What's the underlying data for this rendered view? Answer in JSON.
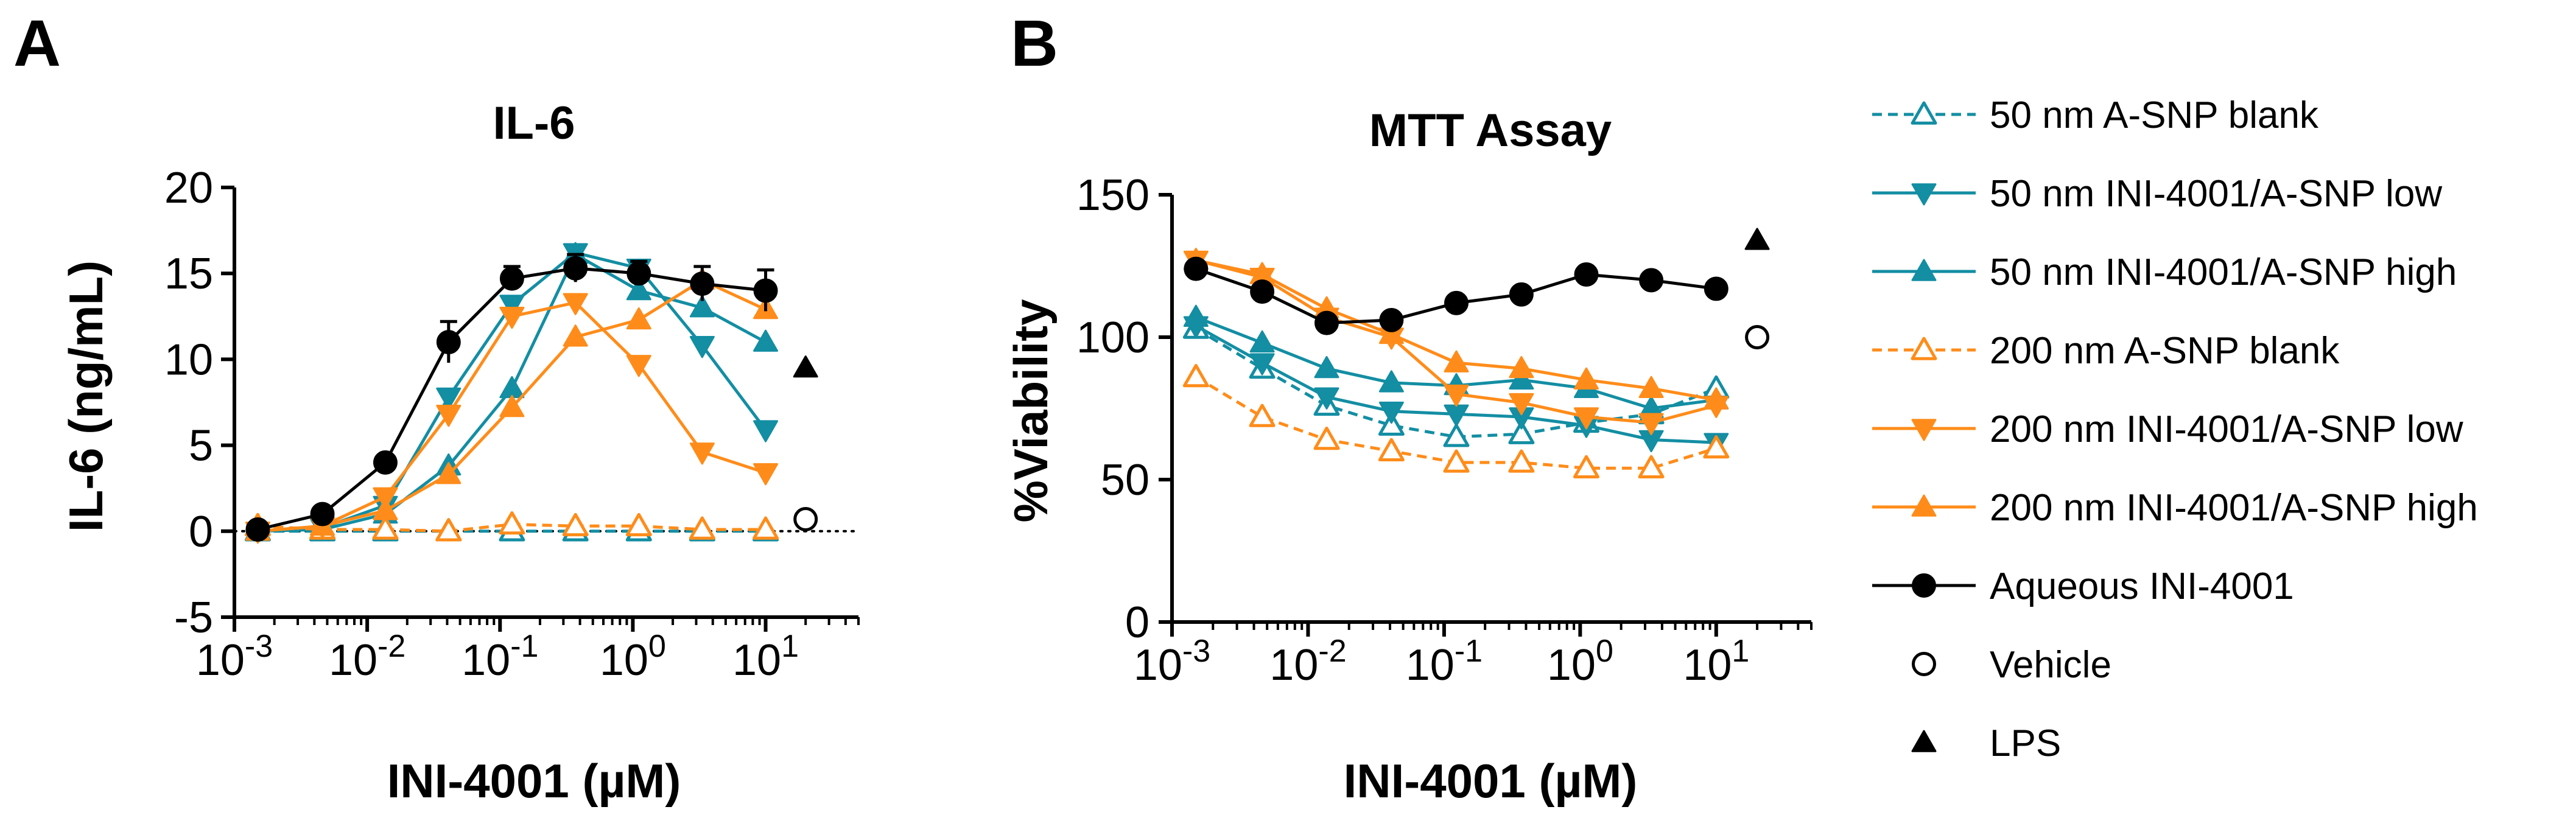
{
  "panels": {
    "a": {
      "letter": "A"
    },
    "b": {
      "letter": "B"
    }
  },
  "colors": {
    "teal": "#138ea3",
    "orange": "#ff8c1a",
    "black": "#000000"
  },
  "legend": [
    {
      "name": "50 nm A-SNP blank",
      "color": "#138ea3",
      "marker": "triangle-up-open",
      "dash": true
    },
    {
      "name": "50 nm INI-4001/A-SNP low",
      "color": "#138ea3",
      "marker": "triangle-down",
      "dash": false
    },
    {
      "name": "50 nm INI-4001/A-SNP high",
      "color": "#138ea3",
      "marker": "triangle-up",
      "dash": false
    },
    {
      "name": "200 nm A-SNP blank",
      "color": "#ff8c1a",
      "marker": "triangle-up-open",
      "dash": true
    },
    {
      "name": "200 nm INI-4001/A-SNP low",
      "color": "#ff8c1a",
      "marker": "triangle-down",
      "dash": false
    },
    {
      "name": "200 nm INI-4001/A-SNP high",
      "color": "#ff8c1a",
      "marker": "triangle-up",
      "dash": false
    },
    {
      "name": "Aqueous INI-4001",
      "color": "#000000",
      "marker": "circle",
      "dash": false
    },
    {
      "name": "Vehicle",
      "color": "#000000",
      "marker": "circle-open",
      "line": false
    },
    {
      "name": "LPS",
      "color": "#000000",
      "marker": "triangle-up",
      "line": false
    }
  ],
  "chart_data": [
    {
      "panel": "A",
      "type": "line",
      "title": "IL-6",
      "xlabel": "INI-4001 (µM)",
      "ylabel": "IL-6 (ng/mL)",
      "xscale": "log",
      "xlim": [
        0.001,
        50
      ],
      "ylim": [
        -5,
        20
      ],
      "xticks": [
        "10-3",
        "10-2",
        "10-1",
        "100",
        "101"
      ],
      "yticks": [
        "-5",
        "0",
        "5",
        "10",
        "15",
        "20"
      ],
      "reference_line": {
        "y": 0,
        "style": "dotted"
      },
      "x": [
        0.0015,
        0.0046,
        0.0137,
        0.041,
        0.123,
        0.37,
        1.11,
        3.33,
        10
      ],
      "series": [
        {
          "name": "50 nm A-SNP blank",
          "values": [
            0,
            0,
            0,
            0,
            0,
            0,
            0,
            0,
            0
          ]
        },
        {
          "name": "50 nm INI-4001/A-SNP low",
          "values": [
            0,
            0.2,
            1.5,
            7.8,
            13.2,
            16.2,
            15.3,
            10.8,
            5.9
          ]
        },
        {
          "name": "50 nm INI-4001/A-SNP high",
          "values": [
            0,
            0.1,
            1,
            3.8,
            8.3,
            16.1,
            14,
            13,
            11
          ]
        },
        {
          "name": "200 nm A-SNP blank",
          "values": [
            0.3,
            0.1,
            0.1,
            0,
            0.4,
            0.3,
            0.3,
            0.1,
            0.1
          ]
        },
        {
          "name": "200 nm INI-4001/A-SNP low",
          "values": [
            0,
            0.3,
            2,
            6.8,
            12.5,
            13.3,
            9.7,
            4.6,
            3.4
          ]
        },
        {
          "name": "200 nm INI-4001/A-SNP high",
          "values": [
            0,
            0.3,
            1.2,
            3.3,
            7.2,
            11.3,
            12.3,
            14.6,
            12.9
          ]
        },
        {
          "name": "Aqueous INI-4001",
          "values": [
            0.1,
            1,
            4,
            11,
            14.7,
            15.3,
            15,
            14.4,
            14
          ],
          "errors": [
            0.3,
            0.3,
            0.4,
            1.2,
            0.7,
            0.8,
            0.7,
            1,
            1.2
          ]
        }
      ],
      "controls": [
        {
          "name": "Vehicle",
          "x": 20,
          "value": 0.7
        },
        {
          "name": "LPS",
          "x": 20,
          "value": 9.5
        }
      ]
    },
    {
      "panel": "B",
      "type": "line",
      "title": "MTT Assay",
      "xlabel": "INI-4001 (µM)",
      "ylabel": "%Viability",
      "xscale": "log",
      "xlim": [
        0.001,
        50
      ],
      "ylim": [
        0,
        150
      ],
      "xticks": [
        "10-3",
        "10-2",
        "10-1",
        "100",
        "101"
      ],
      "yticks": [
        "0",
        "50",
        "100",
        "150"
      ],
      "x": [
        0.0015,
        0.0046,
        0.0137,
        0.041,
        0.123,
        0.37,
        1.11,
        3.33,
        10
      ],
      "series": [
        {
          "name": "50 nm A-SNP blank",
          "values": [
            103,
            89,
            76,
            69,
            65,
            66,
            70,
            73,
            82
          ]
        },
        {
          "name": "50 nm INI-4001/A-SNP low",
          "values": [
            104,
            91,
            79,
            74,
            73,
            72,
            69,
            64,
            63
          ]
        },
        {
          "name": "50 nm INI-4001/A-SNP high",
          "values": [
            107,
            98,
            89,
            84,
            83,
            85,
            82,
            75,
            78
          ]
        },
        {
          "name": "200 nm A-SNP blank",
          "values": [
            86,
            72,
            64,
            60,
            56,
            56,
            54,
            54,
            61
          ]
        },
        {
          "name": "200 nm INI-4001/A-SNP low",
          "values": [
            127,
            121,
            107,
            100,
            80,
            77,
            72,
            70,
            76
          ]
        },
        {
          "name": "200 nm INI-4001/A-SNP high",
          "values": [
            127,
            122,
            110,
            101,
            91,
            89,
            85,
            82,
            78
          ]
        },
        {
          "name": "Aqueous INI-4001",
          "values": [
            124,
            116,
            105,
            106,
            112,
            115,
            122,
            120,
            117
          ]
        }
      ],
      "controls": [
        {
          "name": "Vehicle",
          "x": 20,
          "value": 100
        },
        {
          "name": "LPS",
          "x": 20,
          "value": 134
        }
      ]
    }
  ]
}
